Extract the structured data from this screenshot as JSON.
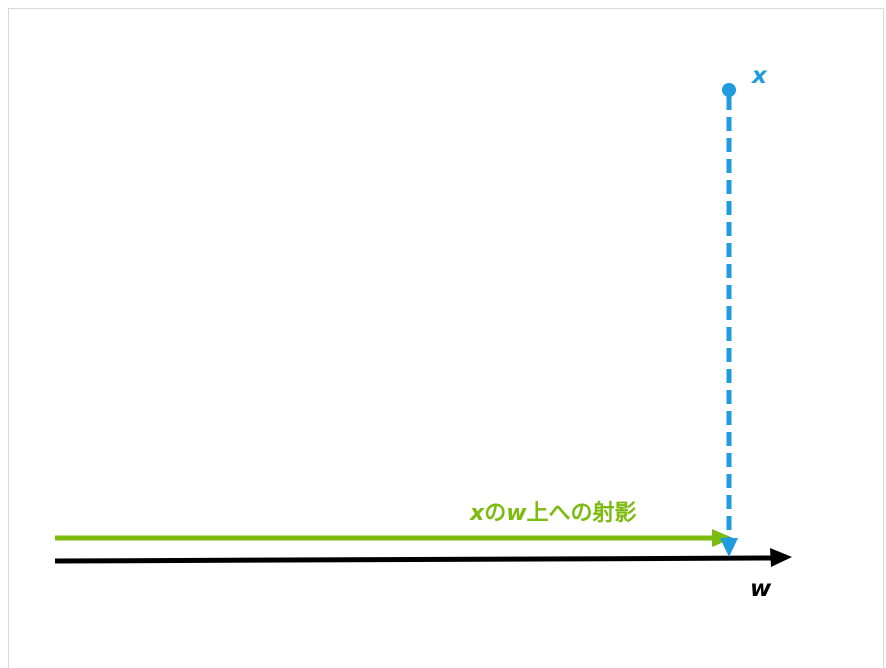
{
  "labels": {
    "x": "x",
    "w": "w",
    "projection_var": "x",
    "projection_mid": "の",
    "projection_w": "w",
    "projection_rest": "上への射影"
  },
  "colors": {
    "x_vector": "#1f9bde",
    "projection": "#7cbb10",
    "w_vector": "#000000",
    "frame_border": "#d9d9d9"
  },
  "icons": {
    "x_point": "filled-circle",
    "arrowheads": "triangle"
  }
}
